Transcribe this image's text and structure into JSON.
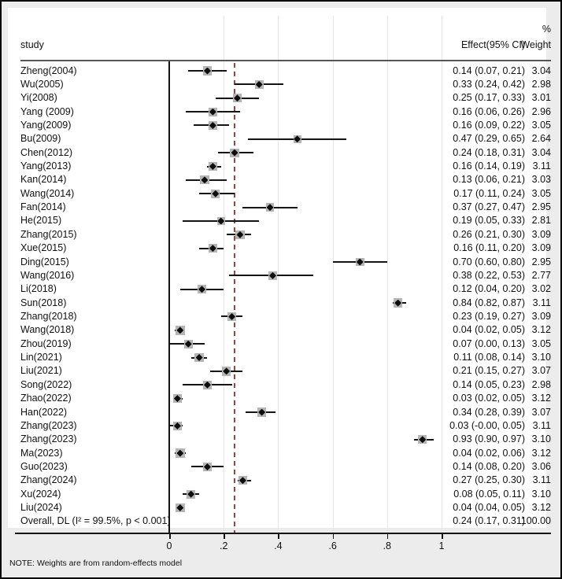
{
  "note": "NOTE: Weights are from random-effects model",
  "colors": {
    "diamond": "#0d0d0d",
    "ci_line": "#141414",
    "weight_box": "#b5b5b5",
    "dashed_line": "#9a4343",
    "zero_line": "#141414",
    "gridline": "#e6e6e6",
    "plot_background": "#ffffff",
    "margin_background": "#ececec"
  },
  "chart_data": {
    "type": "forest",
    "title": "",
    "column_headers": {
      "study": "study",
      "percent": "%",
      "effect": "Effect(95% CI)",
      "weight": "Weight"
    },
    "x_axis": {
      "tick_values": [
        0,
        0.2,
        0.4,
        0.6,
        0.8,
        1
      ],
      "tick_labels": [
        "0",
        ".2",
        ".4",
        ".6",
        ".8",
        "1"
      ],
      "grid": "light vertical lines at labeled ticks except 0"
    },
    "null_line_value": 0,
    "overall_dashed_line_value": 0.24,
    "legend_position": "none",
    "studies": [
      {
        "label": "Zheng(2004)",
        "effect": 0.14,
        "lo": 0.07,
        "hi": 0.21,
        "ci_text": "0.14 (0.07, 0.21)",
        "weight": "3.04"
      },
      {
        "label": "Wu(2005)",
        "effect": 0.33,
        "lo": 0.24,
        "hi": 0.42,
        "ci_text": "0.33 (0.24, 0.42)",
        "weight": "2.98"
      },
      {
        "label": "Yi(2008)",
        "effect": 0.25,
        "lo": 0.17,
        "hi": 0.33,
        "ci_text": "0.25 (0.17, 0.33)",
        "weight": "3.01"
      },
      {
        "label": "Yang (2009)",
        "effect": 0.16,
        "lo": 0.06,
        "hi": 0.26,
        "ci_text": "0.16 (0.06, 0.26)",
        "weight": "2.96"
      },
      {
        "label": "Yang(2009)",
        "effect": 0.16,
        "lo": 0.09,
        "hi": 0.22,
        "ci_text": "0.16 (0.09, 0.22)",
        "weight": "3.05"
      },
      {
        "label": "Bu(2009)",
        "effect": 0.47,
        "lo": 0.29,
        "hi": 0.65,
        "ci_text": "0.47 (0.29, 0.65)",
        "weight": "2.64"
      },
      {
        "label": "Chen(2012)",
        "effect": 0.24,
        "lo": 0.18,
        "hi": 0.31,
        "ci_text": "0.24 (0.18, 0.31)",
        "weight": "3.04"
      },
      {
        "label": "Yang(2013)",
        "effect": 0.16,
        "lo": 0.14,
        "hi": 0.19,
        "ci_text": "0.16 (0.14, 0.19)",
        "weight": "3.11"
      },
      {
        "label": "Kan(2014)",
        "effect": 0.13,
        "lo": 0.06,
        "hi": 0.21,
        "ci_text": "0.13 (0.06, 0.21)",
        "weight": "3.03"
      },
      {
        "label": "Wang(2014)",
        "effect": 0.17,
        "lo": 0.11,
        "hi": 0.24,
        "ci_text": "0.17 (0.11, 0.24)",
        "weight": "3.05"
      },
      {
        "label": "Fan(2014)",
        "effect": 0.37,
        "lo": 0.27,
        "hi": 0.47,
        "ci_text": "0.37 (0.27, 0.47)",
        "weight": "2.95"
      },
      {
        "label": "He(2015)",
        "effect": 0.19,
        "lo": 0.05,
        "hi": 0.33,
        "ci_text": "0.19 (0.05, 0.33)",
        "weight": "2.81"
      },
      {
        "label": "Zhang(2015)",
        "effect": 0.26,
        "lo": 0.21,
        "hi": 0.3,
        "ci_text": "0.26 (0.21, 0.30)",
        "weight": "3.09"
      },
      {
        "label": "Xue(2015)",
        "effect": 0.16,
        "lo": 0.11,
        "hi": 0.2,
        "ci_text": "0.16 (0.11, 0.20)",
        "weight": "3.09"
      },
      {
        "label": "Ding(2015)",
        "effect": 0.7,
        "lo": 0.6,
        "hi": 0.8,
        "ci_text": "0.70 (0.60, 0.80)",
        "weight": "2.95"
      },
      {
        "label": "Wang(2016)",
        "effect": 0.38,
        "lo": 0.22,
        "hi": 0.53,
        "ci_text": "0.38 (0.22, 0.53)",
        "weight": "2.77"
      },
      {
        "label": "Li(2018)",
        "effect": 0.12,
        "lo": 0.04,
        "hi": 0.2,
        "ci_text": "0.12 (0.04, 0.20)",
        "weight": "3.02"
      },
      {
        "label": "Sun(2018)",
        "effect": 0.84,
        "lo": 0.82,
        "hi": 0.87,
        "ci_text": "0.84 (0.82, 0.87)",
        "weight": "3.11"
      },
      {
        "label": "Zhang(2018)",
        "effect": 0.23,
        "lo": 0.19,
        "hi": 0.27,
        "ci_text": "0.23 (0.19, 0.27)",
        "weight": "3.09"
      },
      {
        "label": "Wang(2018)",
        "effect": 0.04,
        "lo": 0.02,
        "hi": 0.05,
        "ci_text": "0.04 (0.02, 0.05)",
        "weight": "3.12"
      },
      {
        "label": "Zhou(2019)",
        "effect": 0.07,
        "lo": 0.0,
        "hi": 0.13,
        "ci_text": "0.07 (0.00, 0.13)",
        "weight": "3.05"
      },
      {
        "label": "Lin(2021)",
        "effect": 0.11,
        "lo": 0.08,
        "hi": 0.14,
        "ci_text": "0.11 (0.08, 0.14)",
        "weight": "3.10"
      },
      {
        "label": "Liu(2021)",
        "effect": 0.21,
        "lo": 0.15,
        "hi": 0.27,
        "ci_text": "0.21 (0.15, 0.27)",
        "weight": "3.07"
      },
      {
        "label": "Song(2022)",
        "effect": 0.14,
        "lo": 0.05,
        "hi": 0.23,
        "ci_text": "0.14 (0.05, 0.23)",
        "weight": "2.98"
      },
      {
        "label": "Zhao(2022)",
        "effect": 0.03,
        "lo": 0.02,
        "hi": 0.05,
        "ci_text": "0.03 (0.02, 0.05)",
        "weight": "3.12"
      },
      {
        "label": "Han(2022)",
        "effect": 0.34,
        "lo": 0.28,
        "hi": 0.39,
        "ci_text": "0.34 (0.28, 0.39)",
        "weight": "3.07"
      },
      {
        "label": "Zhang(2023)",
        "effect": 0.03,
        "lo": -0.004,
        "hi": 0.05,
        "ci_text": "0.03 (-0.00, 0.05)",
        "weight": "3.11"
      },
      {
        "label": "Zhang(2023)",
        "effect": 0.93,
        "lo": 0.9,
        "hi": 0.97,
        "ci_text": "0.93 (0.90, 0.97)",
        "weight": "3.10"
      },
      {
        "label": "Ma(2023)",
        "effect": 0.04,
        "lo": 0.02,
        "hi": 0.06,
        "ci_text": "0.04 (0.02, 0.06)",
        "weight": "3.12"
      },
      {
        "label": "Guo(2023)",
        "effect": 0.14,
        "lo": 0.08,
        "hi": 0.2,
        "ci_text": "0.14 (0.08, 0.20)",
        "weight": "3.06"
      },
      {
        "label": "Zhang(2024)",
        "effect": 0.27,
        "lo": 0.25,
        "hi": 0.3,
        "ci_text": "0.27 (0.25, 0.30)",
        "weight": "3.11"
      },
      {
        "label": "Xu(2024)",
        "effect": 0.08,
        "lo": 0.05,
        "hi": 0.11,
        "ci_text": "0.08 (0.05, 0.11)",
        "weight": "3.10"
      },
      {
        "label": "Liu(2024)",
        "effect": 0.04,
        "lo": 0.04,
        "hi": 0.05,
        "ci_text": "0.04 (0.04, 0.05)",
        "weight": "3.12"
      }
    ],
    "overall": {
      "label": "Overall, DL (I² = 99.5%, p < 0.001)",
      "effect": 0.24,
      "lo": 0.17,
      "hi": 0.31,
      "ci_text": "0.24 (0.17, 0.31)",
      "weight": "100.00",
      "marker_shown": false
    }
  }
}
